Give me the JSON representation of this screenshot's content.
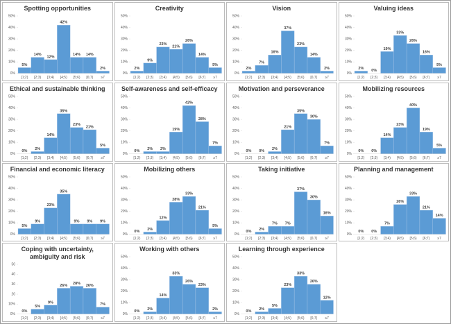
{
  "chart_data": [
    {
      "type": "bar",
      "title": "Spotting opportunities",
      "categories": [
        "[1;2)",
        "[2;3)",
        "[3;4)",
        "[4;5)",
        "[5;6)",
        "[6;7)",
        "≥7"
      ],
      "values": [
        5,
        14,
        12,
        42,
        14,
        14,
        2
      ],
      "value_labels": [
        "5%",
        "14%",
        "12%",
        "42%",
        "14%",
        "14%",
        "2%"
      ],
      "color": "#5b9bd5",
      "ylim": [
        0,
        50
      ],
      "yticks": [
        {
          "value": 0,
          "label": "0%"
        },
        {
          "value": 10,
          "label": "10%"
        },
        {
          "value": 20,
          "label": "20%"
        },
        {
          "value": 30,
          "label": "30%"
        },
        {
          "value": 40,
          "label": "40%"
        },
        {
          "value": 50,
          "label": "50%"
        }
      ]
    },
    {
      "type": "bar",
      "title": "Creativity",
      "categories": [
        "[1;2)",
        "[2;3)",
        "[3;4)",
        "[4;5)",
        "[5;6)",
        "[6;7)",
        "≥7"
      ],
      "values": [
        2,
        9,
        23,
        21,
        26,
        14,
        5
      ],
      "value_labels": [
        "2%",
        "9%",
        "23%",
        "21%",
        "26%",
        "14%",
        "5%"
      ],
      "color": "#5b9bd5",
      "ylim": [
        0,
        50
      ],
      "yticks": [
        {
          "value": 0,
          "label": "0%"
        },
        {
          "value": 10,
          "label": "10%"
        },
        {
          "value": 20,
          "label": "20%"
        },
        {
          "value": 30,
          "label": "30%"
        },
        {
          "value": 40,
          "label": "40%"
        },
        {
          "value": 50,
          "label": "50%"
        }
      ]
    },
    {
      "type": "bar",
      "title": "Vision",
      "categories": [
        "[1;2)",
        "[2;3)",
        "[3;4)",
        "[4;5)",
        "[5;6)",
        "[6;7)",
        "≥7"
      ],
      "values": [
        2,
        7,
        16,
        37,
        23,
        14,
        2
      ],
      "value_labels": [
        "2%",
        "7%",
        "16%",
        "37%",
        "23%",
        "14%",
        "2%"
      ],
      "color": "#5b9bd5",
      "ylim": [
        0,
        50
      ],
      "yticks": [
        {
          "value": 0,
          "label": "0%"
        },
        {
          "value": 10,
          "label": "10%"
        },
        {
          "value": 20,
          "label": "20%"
        },
        {
          "value": 30,
          "label": "30%"
        },
        {
          "value": 40,
          "label": "40%"
        },
        {
          "value": 50,
          "label": "50%"
        }
      ]
    },
    {
      "type": "bar",
      "title": "Valuing ideas",
      "categories": [
        "[1;2)",
        "[2;3)",
        "[3;4)",
        "[4;5)",
        "[5;6)",
        "[6;7)",
        "≥7"
      ],
      "values": [
        2,
        0,
        19,
        33,
        26,
        16,
        5
      ],
      "value_labels": [
        "2%",
        "0%",
        "19%",
        "33%",
        "26%",
        "16%",
        "5%"
      ],
      "color": "#5b9bd5",
      "ylim": [
        0,
        50
      ],
      "yticks": [
        {
          "value": 0,
          "label": "0%"
        },
        {
          "value": 10,
          "label": "10%"
        },
        {
          "value": 20,
          "label": "20%"
        },
        {
          "value": 30,
          "label": "30%"
        },
        {
          "value": 40,
          "label": "40%"
        },
        {
          "value": 50,
          "label": "50%"
        }
      ]
    },
    {
      "type": "bar",
      "title": "Ethical and sustainable thinking",
      "categories": [
        "[1;2)",
        "[2;3)",
        "[3;4)",
        "[4;5)",
        "[5;6)",
        "[6;7)",
        "≥7"
      ],
      "values": [
        0,
        2,
        14,
        35,
        23,
        21,
        5
      ],
      "value_labels": [
        "0%",
        "2%",
        "14%",
        "35%",
        "23%",
        "21%",
        "5%"
      ],
      "color": "#5b9bd5",
      "ylim": [
        0,
        50
      ],
      "yticks": [
        {
          "value": 0,
          "label": "0%"
        },
        {
          "value": 10,
          "label": "10%"
        },
        {
          "value": 20,
          "label": "20%"
        },
        {
          "value": 30,
          "label": "30%"
        },
        {
          "value": 40,
          "label": "40%"
        },
        {
          "value": 50,
          "label": "50%"
        }
      ]
    },
    {
      "type": "bar",
      "title": "Self-awareness and self-efficacy",
      "categories": [
        "[1;2)",
        "[2;3)",
        "[3;4)",
        "[4;5)",
        "[5;6)",
        "[6;7)",
        "≥7"
      ],
      "values": [
        0,
        2,
        2,
        19,
        42,
        28,
        7
      ],
      "value_labels": [
        "0%",
        "2%",
        "2%",
        "19%",
        "42%",
        "28%",
        "7%"
      ],
      "color": "#5b9bd5",
      "ylim": [
        0,
        50
      ],
      "yticks": [
        {
          "value": 0,
          "label": "0%"
        },
        {
          "value": 10,
          "label": "10%"
        },
        {
          "value": 20,
          "label": "20%"
        },
        {
          "value": 30,
          "label": "30%"
        },
        {
          "value": 40,
          "label": "40%"
        },
        {
          "value": 50,
          "label": "50%"
        }
      ]
    },
    {
      "type": "bar",
      "title": "Motivation and perseverance",
      "categories": [
        "[1;2)",
        "[2;3)",
        "[3;4)",
        "[4;5)",
        "[5;6)",
        "[6;7)",
        "≥7"
      ],
      "values": [
        0,
        0,
        2,
        21,
        35,
        30,
        7
      ],
      "value_labels": [
        "0%",
        "0%",
        "2%",
        "21%",
        "35%",
        "30%",
        "7%"
      ],
      "color": "#5b9bd5",
      "ylim": [
        0,
        50
      ],
      "yticks": [
        {
          "value": 0,
          "label": "0%"
        },
        {
          "value": 10,
          "label": "10%"
        },
        {
          "value": 20,
          "label": "20%"
        },
        {
          "value": 30,
          "label": "30%"
        },
        {
          "value": 40,
          "label": "40%"
        },
        {
          "value": 50,
          "label": "50%"
        }
      ]
    },
    {
      "type": "bar",
      "title": "Mobilizing resources",
      "categories": [
        "[1;2)",
        "[2;3)",
        "[3;4)",
        "[4;5)",
        "[5;6)",
        "[6;7)",
        "≥7"
      ],
      "values": [
        0,
        0,
        14,
        23,
        40,
        19,
        5
      ],
      "value_labels": [
        "0%",
        "0%",
        "14%",
        "23%",
        "40%",
        "19%",
        "5%"
      ],
      "color": "#5b9bd5",
      "ylim": [
        0,
        50
      ],
      "yticks": [
        {
          "value": 0,
          "label": "0%"
        },
        {
          "value": 10,
          "label": "10%"
        },
        {
          "value": 20,
          "label": "20%"
        },
        {
          "value": 30,
          "label": "30%"
        },
        {
          "value": 40,
          "label": "40%"
        },
        {
          "value": 50,
          "label": "50%"
        }
      ]
    },
    {
      "type": "bar",
      "title": "Financial and economic literacy",
      "categories": [
        "[1;2)",
        "[2;3)",
        "[3;4)",
        "[4;5)",
        "[5;6)",
        "[6;7)",
        "≥7"
      ],
      "values": [
        5,
        9,
        23,
        35,
        9,
        9,
        9
      ],
      "value_labels": [
        "5%",
        "9%",
        "23%",
        "35%",
        "9%",
        "9%",
        "9%"
      ],
      "color": "#5b9bd5",
      "ylim": [
        0,
        50
      ],
      "yticks": [
        {
          "value": 0,
          "label": "0%"
        },
        {
          "value": 10,
          "label": "10%"
        },
        {
          "value": 20,
          "label": "20%"
        },
        {
          "value": 30,
          "label": "30%"
        },
        {
          "value": 40,
          "label": "40%"
        },
        {
          "value": 50,
          "label": "50%"
        }
      ]
    },
    {
      "type": "bar",
      "title": "Mobilizing others",
      "categories": [
        "[1;2)",
        "[2;3)",
        "[3;4)",
        "[4;5)",
        "[5;6)",
        "[6;7)",
        "≥7"
      ],
      "values": [
        0,
        2,
        12,
        28,
        33,
        21,
        5
      ],
      "value_labels": [
        "0%",
        "2%",
        "12%",
        "28%",
        "33%",
        "21%",
        "5%"
      ],
      "color": "#5b9bd5",
      "ylim": [
        0,
        50
      ],
      "yticks": [
        {
          "value": 0,
          "label": "0%"
        },
        {
          "value": 10,
          "label": "10%"
        },
        {
          "value": 20,
          "label": "20%"
        },
        {
          "value": 30,
          "label": "30%"
        },
        {
          "value": 40,
          "label": "40%"
        },
        {
          "value": 50,
          "label": "50%"
        }
      ]
    },
    {
      "type": "bar",
      "title": "Taking initiative",
      "categories": [
        "[1;2)",
        "[2;3)",
        "[3;4)",
        "[4;5)",
        "[5;6)",
        "[6;7)",
        "≥7"
      ],
      "values": [
        0,
        2,
        7,
        7,
        37,
        30,
        16
      ],
      "value_labels": [
        "0%",
        "2%",
        "7%",
        "7%",
        "37%",
        "30%",
        "16%"
      ],
      "color": "#5b9bd5",
      "ylim": [
        0,
        50
      ],
      "yticks": [
        {
          "value": 0,
          "label": "0%"
        },
        {
          "value": 10,
          "label": "10%"
        },
        {
          "value": 20,
          "label": "20%"
        },
        {
          "value": 30,
          "label": "30%"
        },
        {
          "value": 40,
          "label": "40%"
        },
        {
          "value": 50,
          "label": "50%"
        }
      ]
    },
    {
      "type": "bar",
      "title": "Planning and management",
      "categories": [
        "[1;2)",
        "[2;3)",
        "[3;4)",
        "[4;5)",
        "[5;6)",
        "[6;7)",
        "≥7"
      ],
      "values": [
        0,
        0,
        7,
        26,
        33,
        21,
        14
      ],
      "value_labels": [
        "0%",
        "0%",
        "7%",
        "26%",
        "33%",
        "21%",
        "14%"
      ],
      "color": "#5b9bd5",
      "ylim": [
        0,
        50
      ],
      "yticks": [
        {
          "value": 0,
          "label": "0%"
        },
        {
          "value": 10,
          "label": "10%"
        },
        {
          "value": 20,
          "label": "20%"
        },
        {
          "value": 30,
          "label": "30%"
        },
        {
          "value": 40,
          "label": "40%"
        },
        {
          "value": 50,
          "label": "50%"
        }
      ]
    },
    {
      "type": "bar",
      "title": "Coping with uncertainty, ambiguity and risk",
      "categories": [
        "[1;2)",
        "[2;3)",
        "[3;4)",
        "[4;5)",
        "[5;6)",
        "[6;7)",
        "≥7"
      ],
      "values": [
        0,
        5,
        9,
        26,
        28,
        26,
        7
      ],
      "value_labels": [
        "0%",
        "5%",
        "9%",
        "26%",
        "28%",
        "26%",
        "7%"
      ],
      "color": "#5b9bd5",
      "ylim": [
        0,
        50
      ],
      "yticks": [
        {
          "value": 0,
          "label": "0%"
        },
        {
          "value": 10,
          "label": "10%"
        },
        20,
        30,
        40,
        50
      ]
    },
    {
      "type": "bar",
      "title": "Working with others",
      "categories": [
        "[1;2)",
        "[2;3)",
        "[3;4)",
        "[4;5)",
        "[5;6)",
        "[6;7)",
        "≥7"
      ],
      "values": [
        0,
        2,
        14,
        33,
        26,
        23,
        2
      ],
      "value_labels": [
        "0%",
        "2%",
        "14%",
        "33%",
        "26%",
        "23%",
        "2%"
      ],
      "color": "#5b9bd5",
      "ylim": [
        0,
        50
      ],
      "yticks": [
        {
          "value": 0,
          "label": "0%"
        },
        {
          "value": 10,
          "label": "10%"
        },
        {
          "value": 20,
          "label": "20%"
        },
        {
          "value": 30,
          "label": "30%"
        },
        {
          "value": 40,
          "label": "40%"
        },
        {
          "value": 50,
          "label": "50%"
        }
      ]
    },
    {
      "type": "bar",
      "title": "Learning through experience",
      "categories": [
        "[1;2)",
        "[2;3)",
        "[3;4)",
        "[4;5)",
        "[5;6)",
        "[6;7)",
        "≥7"
      ],
      "values": [
        0,
        2,
        5,
        23,
        33,
        26,
        12
      ],
      "value_labels": [
        "0%",
        "2%",
        "5%",
        "23%",
        "33%",
        "26%",
        "12%"
      ],
      "color": "#5b9bd5",
      "ylim": [
        0,
        50
      ],
      "yticks": [
        {
          "value": 0,
          "label": "0%"
        },
        {
          "value": 10,
          "label": "10%"
        },
        {
          "value": 20,
          "label": "20%"
        },
        {
          "value": 30,
          "label": "30%"
        },
        {
          "value": 40,
          "label": "40%"
        },
        {
          "value": 50,
          "label": "50%"
        }
      ]
    }
  ]
}
